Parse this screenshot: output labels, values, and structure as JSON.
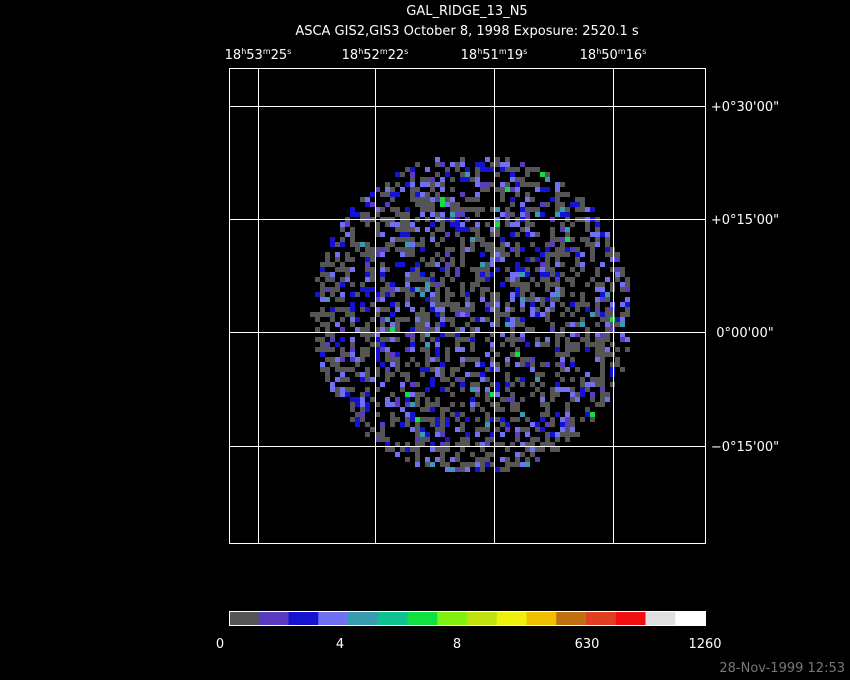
{
  "header": {
    "title": "GAL_RIDGE_13_N5",
    "subtitle": "ASCA GIS2,GIS3 October 8, 1998 Exposure: 2520.1 s"
  },
  "ra_labels": [
    {
      "hours": "18",
      "h": "h",
      "minutes": "53",
      "m": "m",
      "seconds": "25",
      "s": "s"
    },
    {
      "hours": "18",
      "h": "h",
      "minutes": "52",
      "m": "m",
      "seconds": "22",
      "s": "s"
    },
    {
      "hours": "18",
      "h": "h",
      "minutes": "51",
      "m": "m",
      "seconds": "19",
      "s": "s"
    },
    {
      "hours": "18",
      "h": "h",
      "minutes": "50",
      "m": "m",
      "seconds": "16",
      "s": "s"
    }
  ],
  "dec_labels": [
    "+0°30'00\"",
    "+0°15'00\"",
    "0°00'00\"",
    "−0°15'00\""
  ],
  "colorbar": {
    "colors": [
      "#555555",
      "#5a3bbf",
      "#1414d0",
      "#7070f0",
      "#3a9ab0",
      "#10c090",
      "#10e040",
      "#80f010",
      "#c0e010",
      "#f0f010",
      "#f0c000",
      "#c07010",
      "#e04020",
      "#f01010",
      "#e0e0e0",
      "#ffffff"
    ],
    "labels": [
      "0",
      "4",
      "8",
      "630",
      "1260"
    ]
  },
  "footer": "28-Nov-1999 12:53"
}
